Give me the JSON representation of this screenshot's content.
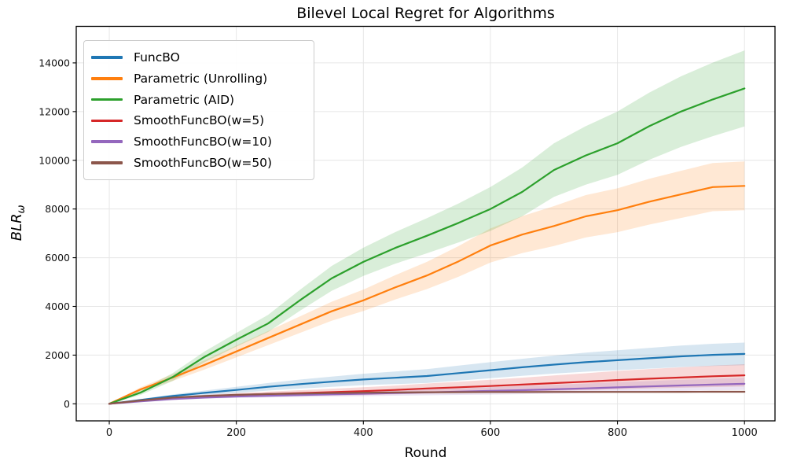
{
  "title": "Bilevel Local Regret for Algorithms",
  "chart_data": {
    "type": "line",
    "title": "Bilevel Local Regret for Algorithms",
    "xlabel": "Round",
    "ylabel_main": "BLR",
    "ylabel_sub": "ω",
    "grid": true,
    "legend_position": "upper left",
    "xlim": [
      -52,
      1048
    ],
    "ylim": [
      -700,
      15500
    ],
    "x_ticks": [
      0,
      200,
      400,
      600,
      800,
      1000
    ],
    "y_ticks": [
      0,
      2000,
      4000,
      6000,
      8000,
      10000,
      12000,
      14000
    ],
    "x": [
      0,
      50,
      100,
      150,
      200,
      250,
      300,
      350,
      400,
      450,
      500,
      550,
      600,
      650,
      700,
      750,
      800,
      850,
      900,
      950,
      1000
    ],
    "series": [
      {
        "name": "FuncBO",
        "color": "#1f77b4",
        "values": [
          0,
          160,
          320,
          450,
          570,
          700,
          810,
          910,
          1000,
          1070,
          1140,
          1260,
          1380,
          1500,
          1610,
          1710,
          1790,
          1870,
          1950,
          2010,
          2050
        ],
        "band": [
          5,
          35,
          65,
          95,
          125,
          155,
          185,
          210,
          235,
          260,
          285,
          310,
          330,
          350,
          370,
          390,
          410,
          425,
          440,
          455,
          465
        ]
      },
      {
        "name": "Parametric (Unrolling)",
        "color": "#ff7f0e",
        "values": [
          0,
          600,
          1080,
          1600,
          2150,
          2700,
          3250,
          3800,
          4250,
          4780,
          5270,
          5850,
          6500,
          6950,
          7300,
          7700,
          7950,
          8300,
          8600,
          8900,
          8950
        ],
        "band": [
          5,
          90,
          140,
          190,
          240,
          290,
          340,
          390,
          440,
          500,
          560,
          630,
          700,
          760,
          820,
          870,
          900,
          940,
          970,
          990,
          1000
        ]
      },
      {
        "name": "Parametric (AID)",
        "color": "#2ca02c",
        "values": [
          0,
          470,
          1100,
          1930,
          2630,
          3300,
          4250,
          5150,
          5830,
          6400,
          6900,
          7430,
          8000,
          8700,
          9600,
          10200,
          10700,
          11400,
          12000,
          12500,
          12950
        ],
        "band": [
          5,
          100,
          160,
          220,
          280,
          350,
          430,
          510,
          580,
          650,
          720,
          800,
          900,
          1000,
          1100,
          1200,
          1300,
          1380,
          1450,
          1510,
          1560
        ]
      },
      {
        "name": "SmoothFuncBO(w=5)",
        "color": "#d62728",
        "values": [
          0,
          130,
          240,
          310,
          360,
          400,
          440,
          480,
          520,
          570,
          630,
          680,
          730,
          790,
          850,
          910,
          975,
          1030,
          1080,
          1130,
          1170
        ],
        "band": [
          5,
          20,
          40,
          60,
          80,
          100,
          120,
          140,
          160,
          180,
          205,
          230,
          255,
          285,
          315,
          345,
          375,
          400,
          420,
          440,
          455
        ]
      },
      {
        "name": "SmoothFuncBO(w=10)",
        "color": "#9467bd",
        "values": [
          0,
          100,
          195,
          255,
          300,
          330,
          360,
          390,
          415,
          445,
          470,
          500,
          530,
          560,
          595,
          635,
          675,
          715,
          755,
          790,
          820
        ],
        "band": [
          5,
          15,
          30,
          45,
          60,
          70,
          80,
          90,
          100,
          110,
          120,
          135,
          150,
          165,
          180,
          195,
          210,
          220,
          230,
          240,
          250
        ]
      },
      {
        "name": "SmoothFuncBO(w=50)",
        "color": "#8c564b",
        "values": [
          0,
          140,
          255,
          320,
          370,
          400,
          420,
          440,
          455,
          465,
          475,
          480,
          485,
          487,
          488,
          488,
          488,
          490,
          492,
          494,
          495
        ],
        "band": [
          2,
          8,
          12,
          16,
          20,
          22,
          24,
          26,
          27,
          28,
          29,
          30,
          30,
          30,
          30,
          30,
          30,
          30,
          30,
          30,
          30
        ]
      }
    ],
    "style": {
      "grid_color": "#e6e6e6",
      "spine_color": "#000000",
      "tick_label_color": "#111111",
      "band_opacity": 0.18
    }
  }
}
